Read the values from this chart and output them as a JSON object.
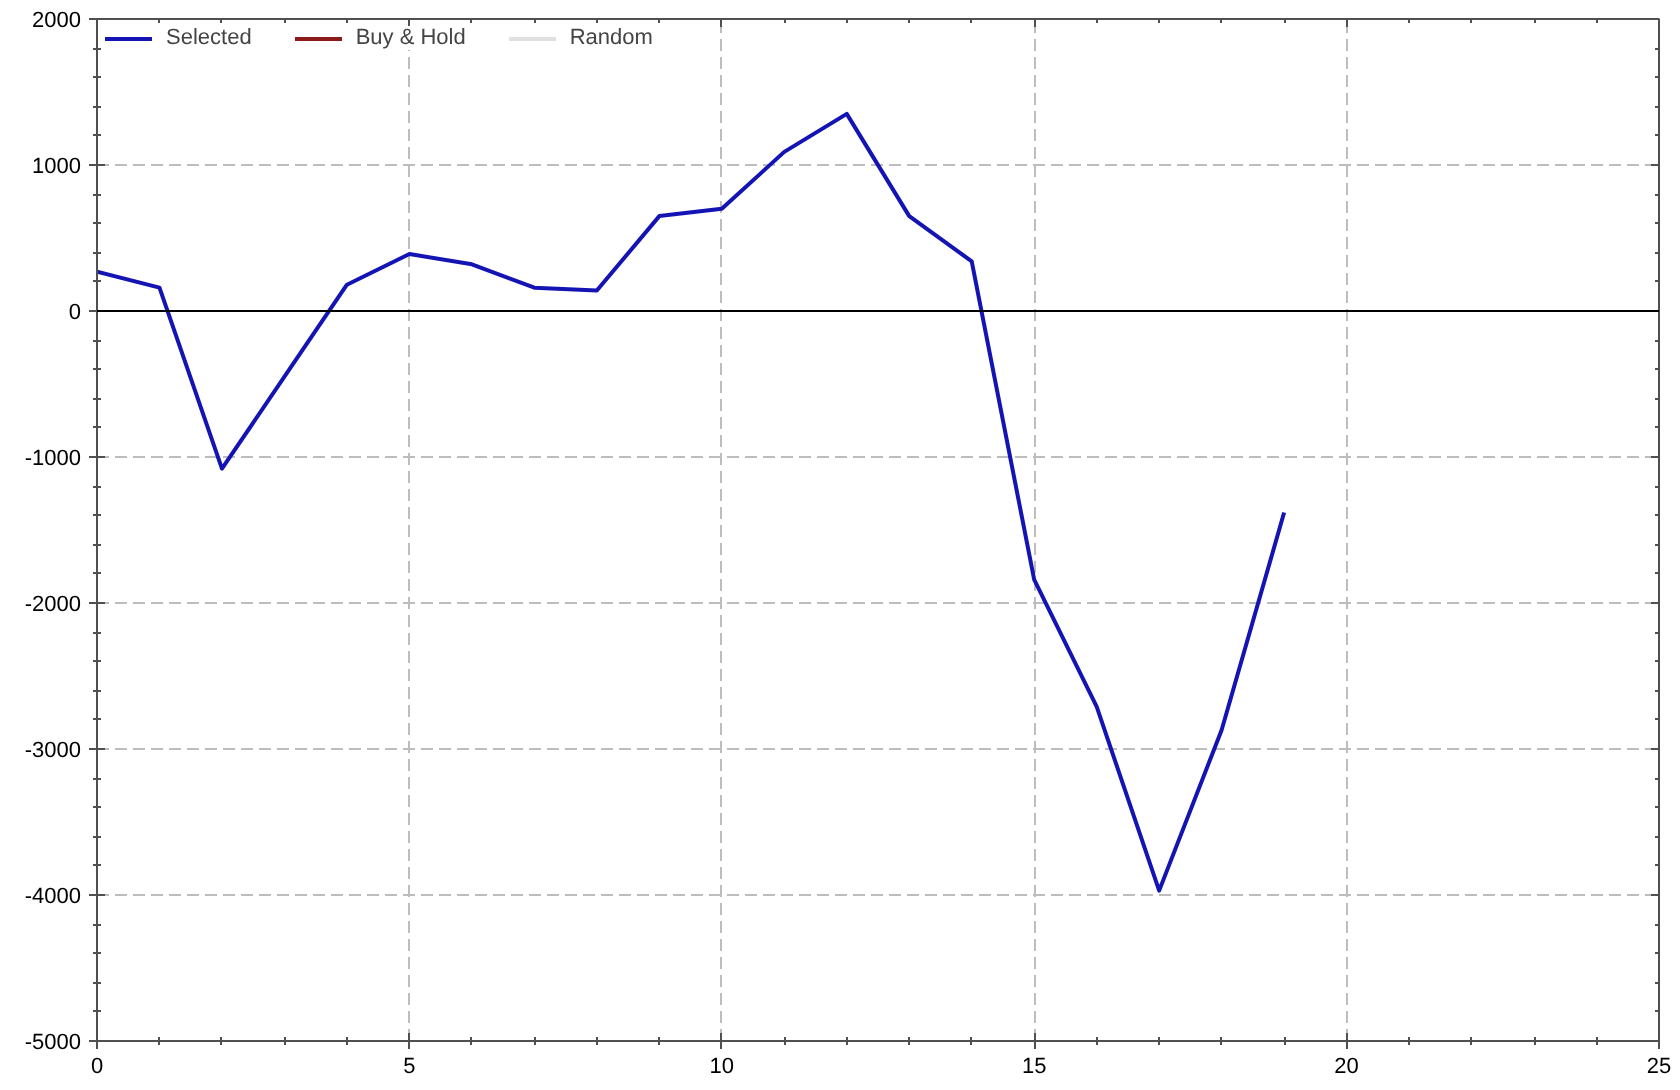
{
  "chart_data": {
    "type": "line",
    "x": [
      0,
      1,
      2,
      3,
      4,
      5,
      6,
      7,
      8,
      9,
      10,
      11,
      12,
      13,
      14,
      15,
      16,
      17,
      18,
      19
    ],
    "series": [
      {
        "name": "Selected",
        "color": "#1414b4",
        "values": [
          270,
          160,
          -1080,
          -450,
          180,
          390,
          320,
          160,
          140,
          650,
          700,
          1090,
          1350,
          650,
          340,
          -1840,
          -2710,
          -3970,
          -2870,
          -1380
        ]
      },
      {
        "name": "Buy & Hold",
        "color": "#8b1a1a",
        "values": [
          null,
          null,
          null,
          null,
          null,
          null,
          null,
          null,
          null,
          null,
          null,
          null,
          null,
          null,
          null,
          null,
          null,
          null,
          null,
          null
        ]
      },
      {
        "name": "Random",
        "color": "#e0e0e0",
        "values": [
          null,
          null,
          null,
          null,
          null,
          null,
          null,
          null,
          null,
          null,
          null,
          null,
          null,
          null,
          null,
          null,
          null,
          null,
          null,
          null
        ]
      }
    ],
    "xlim": [
      0,
      25
    ],
    "ylim": [
      -5000,
      2000
    ],
    "xticks": [
      0,
      5,
      10,
      15,
      20,
      25
    ],
    "yticks": [
      -5000,
      -4000,
      -3000,
      -2000,
      -1000,
      0,
      1000,
      2000
    ],
    "grid": true,
    "legend": "top left",
    "ref_lines": [
      {
        "axis": "y",
        "value": 0,
        "color": "#000000"
      }
    ]
  }
}
